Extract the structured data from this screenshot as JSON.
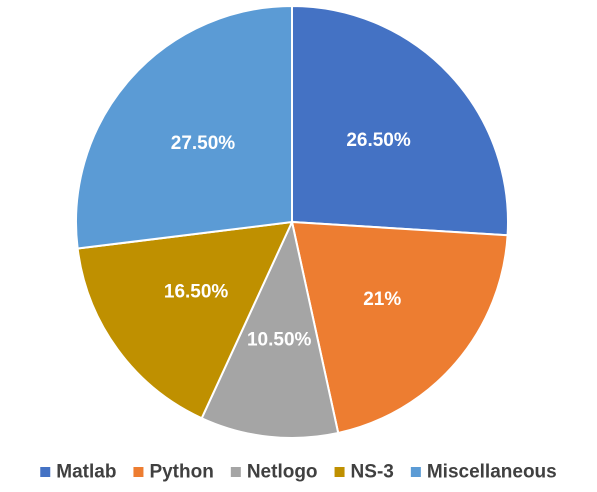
{
  "chart_data": {
    "type": "pie",
    "title": "",
    "categories": [
      "Matlab",
      "Python",
      "Netlogo",
      "NS-3",
      "Miscellaneous"
    ],
    "values": [
      26.5,
      21,
      10.5,
      16.5,
      27.5
    ],
    "labels": [
      "26.50%",
      "21%",
      "10.50%",
      "16.50%",
      "27.50%"
    ],
    "colors": [
      "#4472C4",
      "#ED7D31",
      "#A5A5A5",
      "#BF9000",
      "#5B9BD5"
    ],
    "start_angle": "12 o'clock",
    "direction": "clockwise",
    "legend_position": "bottom"
  }
}
